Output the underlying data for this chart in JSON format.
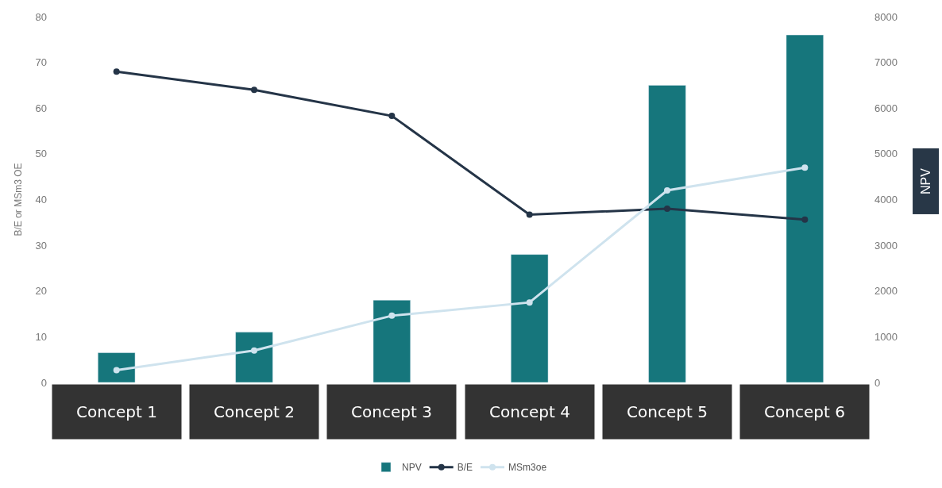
{
  "chart_data": {
    "type": "bar",
    "ylabel": "B/E or MSm3 OE",
    "y2label": "NPV",
    "categories": [
      "Concept 1",
      "Concept 2",
      "Concept 3",
      "Concept 4",
      "Concept 5",
      "Concept 6"
    ],
    "series": [
      {
        "name": "NPV",
        "axis": "y2",
        "color": "#16767c",
        "values": [
          650,
          1100,
          1800,
          2800,
          6500,
          7600
        ]
      },
      {
        "name": "B/E",
        "type": "line",
        "axis": "y",
        "color": "#243447",
        "values": [
          68,
          64,
          58.3,
          36.7,
          38,
          35.6
        ]
      },
      {
        "name": "MSm3oe",
        "type": "line",
        "axis": "y",
        "color": "#cfe3ee",
        "values": [
          2.7,
          7,
          14.6,
          17.5,
          42,
          47
        ]
      }
    ],
    "ylim": [
      0,
      80
    ],
    "yticks": [
      0,
      10,
      20,
      30,
      40,
      50,
      60,
      70,
      80
    ],
    "y2lim": [
      0,
      8000
    ],
    "y2ticks": [
      0,
      1000,
      2000,
      3000,
      4000,
      5000,
      6000,
      7000,
      8000
    ],
    "legend": "bottom",
    "marker": "circle",
    "line_style": "solid"
  }
}
